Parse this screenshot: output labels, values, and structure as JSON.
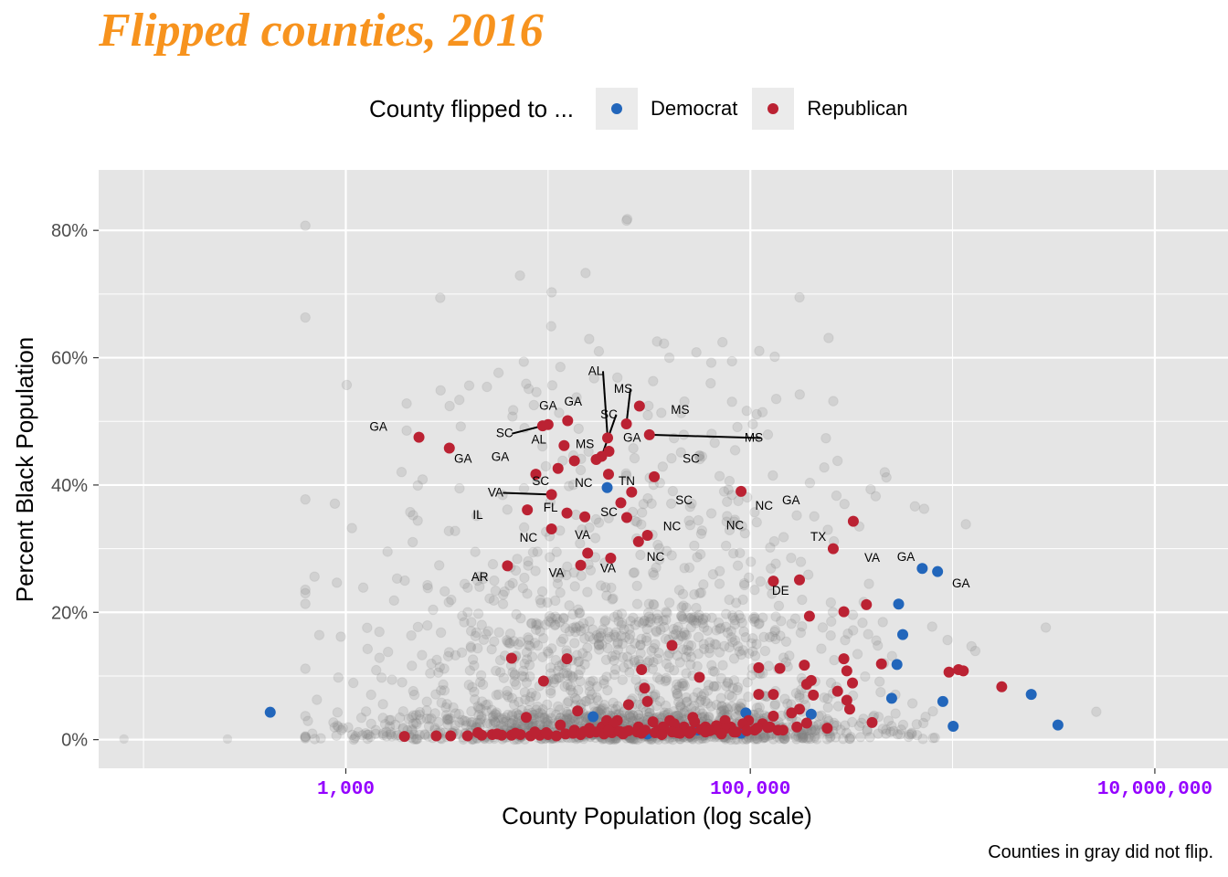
{
  "title": "Flipped counties, 2016",
  "caption": "Counties in gray did not flip.",
  "legend": {
    "title": "County flipped to ...",
    "items": [
      {
        "label": "Democrat",
        "color": "#2266bb"
      },
      {
        "label": "Republican",
        "color": "#bb2233"
      }
    ]
  },
  "colors": {
    "panel": "#e5e5e5",
    "grid": "#ffffff",
    "gray_points": "#808080",
    "title": "#f7931e",
    "x_ticks": "#9400ff"
  },
  "chart_data": {
    "type": "scatter",
    "title": "Flipped counties, 2016",
    "xlabel": "County Population (log scale)",
    "ylabel": "Percent Black Population",
    "x_scale": "log10",
    "xlim": [
      60,
      23000000
    ],
    "ylim": [
      -4.5,
      89.5
    ],
    "x_ticks": [
      1000,
      100000,
      10000000
    ],
    "x_tick_labels": [
      "1,000",
      "100,000",
      "10,000,000"
    ],
    "y_ticks": [
      0,
      20,
      40,
      60,
      80
    ],
    "y_tick_labels": [
      "0%",
      "20%",
      "40%",
      "60%",
      "80%"
    ],
    "grid": true,
    "series": [
      {
        "name": "Democrat",
        "color": "#2266bb",
        "points": [
          [
            423,
            4.3
          ],
          [
            19600,
            39.6
          ],
          [
            708000,
            26.9
          ],
          [
            843000,
            26.4
          ],
          [
            541000,
            21.3
          ],
          [
            567000,
            16.5
          ],
          [
            531000,
            11.8
          ],
          [
            500000,
            6.5
          ],
          [
            895000,
            6.0
          ],
          [
            1007000,
            2.1
          ],
          [
            2449000,
            7.1
          ],
          [
            3318000,
            2.3
          ],
          [
            95000,
            4.2
          ],
          [
            16700,
            3.6
          ],
          [
            43000,
            2.0
          ],
          [
            90000,
            1.0
          ],
          [
            200000,
            4.0
          ],
          [
            31000,
            0.9
          ],
          [
            55000,
            1.5
          ],
          [
            70000,
            1.8
          ]
        ]
      },
      {
        "name": "Republican",
        "color": "#bb2233",
        "points": [
          [
            2300,
            47.5
          ],
          [
            3250,
            45.8
          ],
          [
            9400,
            49.3
          ],
          [
            10000,
            49.5
          ],
          [
            12500,
            50.1
          ],
          [
            13500,
            43.8
          ],
          [
            12000,
            46.2
          ],
          [
            11200,
            42.6
          ],
          [
            19700,
            47.4
          ],
          [
            20000,
            45.3
          ],
          [
            18400,
            44.5
          ],
          [
            17300,
            44.0
          ],
          [
            24400,
            49.6
          ],
          [
            28300,
            52.4
          ],
          [
            31700,
            47.9
          ],
          [
            19900,
            41.7
          ],
          [
            8700,
            41.7
          ],
          [
            10400,
            38.5
          ],
          [
            33500,
            41.3
          ],
          [
            25900,
            38.9
          ],
          [
            22900,
            37.2
          ],
          [
            90000,
            39.0
          ],
          [
            7900,
            36.1
          ],
          [
            12400,
            35.6
          ],
          [
            15200,
            35.0
          ],
          [
            24500,
            34.9
          ],
          [
            31000,
            32.1
          ],
          [
            28000,
            31.1
          ],
          [
            10400,
            33.1
          ],
          [
            14500,
            27.4
          ],
          [
            20400,
            28.5
          ],
          [
            6300,
            27.3
          ],
          [
            15700,
            29.3
          ],
          [
            130000,
            24.9
          ],
          [
            175000,
            25.1
          ],
          [
            323000,
            34.3
          ],
          [
            257000,
            30.0
          ],
          [
            290000,
            20.1
          ],
          [
            196000,
            19.4
          ],
          [
            375000,
            21.2
          ],
          [
            12400,
            12.7
          ],
          [
            6600,
            12.8
          ],
          [
            9500,
            9.2
          ],
          [
            41000,
            14.8
          ],
          [
            29000,
            11.0
          ],
          [
            30000,
            8.1
          ],
          [
            56000,
            9.8
          ],
          [
            110000,
            11.3
          ],
          [
            140000,
            11.2
          ],
          [
            185000,
            11.7
          ],
          [
            200000,
            9.3
          ],
          [
            290000,
            12.7
          ],
          [
            300000,
            10.8
          ],
          [
            445000,
            11.9
          ],
          [
            960000,
            10.6
          ],
          [
            1070000,
            11.0
          ],
          [
            1130000,
            10.8
          ],
          [
            190000,
            8.7
          ],
          [
            130000,
            7.1
          ],
          [
            110000,
            7.1
          ],
          [
            205000,
            7.0
          ],
          [
            270000,
            7.6
          ],
          [
            300000,
            6.2
          ],
          [
            310000,
            4.8
          ],
          [
            320000,
            8.9
          ],
          [
            1750000,
            8.3
          ],
          [
            160000,
            4.2
          ],
          [
            175000,
            4.8
          ],
          [
            130000,
            3.7
          ],
          [
            190000,
            2.6
          ],
          [
            240000,
            1.8
          ],
          [
            170000,
            2.0
          ],
          [
            400000,
            2.7
          ],
          [
            14000,
            4.5
          ],
          [
            22000,
            3.0
          ],
          [
            25000,
            5.5
          ],
          [
            31000,
            6.0
          ],
          [
            40000,
            3.0
          ],
          [
            47000,
            2.0
          ],
          [
            52000,
            3.5
          ],
          [
            35000,
            1.5
          ],
          [
            60000,
            2.0
          ],
          [
            80000,
            2.0
          ],
          [
            75000,
            3.0
          ],
          [
            98000,
            3.0
          ],
          [
            115000,
            2.5
          ],
          [
            125000,
            2.0
          ],
          [
            7800,
            3.5
          ],
          [
            11500,
            2.3
          ],
          [
            13500,
            1.5
          ],
          [
            16000,
            1.8
          ],
          [
            18500,
            2.0
          ],
          [
            19500,
            3.0
          ],
          [
            21000,
            2.5
          ],
          [
            24000,
            1.2
          ],
          [
            28000,
            2.0
          ],
          [
            33000,
            2.8
          ],
          [
            37000,
            2.0
          ],
          [
            42000,
            2.5
          ],
          [
            45000,
            1.0
          ],
          [
            53000,
            2.8
          ],
          [
            58000,
            1.6
          ],
          [
            64000,
            1.5
          ],
          [
            68000,
            2.2
          ],
          [
            85000,
            1.2
          ],
          [
            92000,
            2.5
          ],
          [
            105000,
            1.5
          ],
          [
            145000,
            1.5
          ],
          [
            1950,
            0.5
          ],
          [
            2800,
            0.6
          ],
          [
            3300,
            0.6
          ],
          [
            4000,
            0.6
          ],
          [
            4700,
            0.7
          ],
          [
            5300,
            0.8
          ],
          [
            5900,
            0.7
          ],
          [
            6600,
            0.7
          ],
          [
            7300,
            0.8
          ],
          [
            8200,
            0.6
          ],
          [
            9100,
            0.7
          ],
          [
            10000,
            0.8
          ],
          [
            11000,
            0.6
          ],
          [
            12200,
            0.9
          ],
          [
            13300,
            1.0
          ],
          [
            14500,
            0.8
          ],
          [
            16100,
            1.1
          ],
          [
            17300,
            1.2
          ],
          [
            18900,
            0.9
          ],
          [
            20700,
            1.1
          ],
          [
            22600,
            1.3
          ],
          [
            25000,
            1.4
          ],
          [
            27600,
            1.2
          ],
          [
            30200,
            1.5
          ],
          [
            33800,
            1.1
          ],
          [
            37500,
            1.7
          ],
          [
            41100,
            1.2
          ],
          [
            46500,
            1.4
          ],
          [
            51000,
            1.3
          ],
          [
            57000,
            1.6
          ],
          [
            63000,
            1.4
          ],
          [
            69000,
            1.5
          ],
          [
            76000,
            1.8
          ],
          [
            83000,
            1.2
          ],
          [
            96000,
            1.4
          ],
          [
            108000,
            1.8
          ],
          [
            122000,
            1.9
          ],
          [
            137000,
            1.5
          ],
          [
            4500,
            1.1
          ],
          [
            5600,
            0.9
          ],
          [
            6900,
            1.0
          ],
          [
            8600,
            1.2
          ],
          [
            9800,
            1.1
          ],
          [
            15100,
            1.3
          ],
          [
            19900,
            1.5
          ],
          [
            23500,
            0.9
          ],
          [
            29000,
            1.0
          ],
          [
            36500,
            0.8
          ],
          [
            43600,
            1.1
          ],
          [
            50000,
            1.0
          ],
          [
            60000,
            1.2
          ],
          [
            72000,
            0.9
          ]
        ]
      }
    ],
    "state_labels": [
      {
        "text": "GA",
        "x": 1450,
        "y": 48.5
      },
      {
        "text": "GA",
        "x": 3800,
        "y": 43.5
      },
      {
        "text": "SC",
        "x": 6100,
        "y": 47.5
      },
      {
        "text": "GA",
        "x": 10000,
        "y": 51.8
      },
      {
        "text": "GA",
        "x": 13300,
        "y": 52.5
      },
      {
        "text": "AL",
        "x": 9000,
        "y": 46.5
      },
      {
        "text": "MS",
        "x": 15200,
        "y": 45.8
      },
      {
        "text": "GA",
        "x": 5800,
        "y": 43.8
      },
      {
        "text": "SC",
        "x": 9200,
        "y": 40.0
      },
      {
        "text": "NC",
        "x": 15000,
        "y": 39.7
      },
      {
        "text": "VA",
        "x": 5500,
        "y": 38.2
      },
      {
        "text": "AL",
        "x": 17200,
        "y": 57.3
      },
      {
        "text": "SC",
        "x": 20000,
        "y": 50.5
      },
      {
        "text": "MS",
        "x": 23500,
        "y": 54.5
      },
      {
        "text": "MS",
        "x": 45000,
        "y": 51.2
      },
      {
        "text": "GA",
        "x": 26000,
        "y": 46.8
      },
      {
        "text": "MS",
        "x": 104000,
        "y": 46.8
      },
      {
        "text": "TN",
        "x": 24500,
        "y": 40.0
      },
      {
        "text": "SC",
        "x": 51000,
        "y": 43.5
      },
      {
        "text": "SC",
        "x": 47000,
        "y": 37.0
      },
      {
        "text": "NC",
        "x": 117000,
        "y": 36.1
      },
      {
        "text": "GA",
        "x": 159000,
        "y": 37.0
      },
      {
        "text": "IL",
        "x": 4500,
        "y": 34.7
      },
      {
        "text": "FL",
        "x": 10300,
        "y": 35.8
      },
      {
        "text": "SC",
        "x": 20000,
        "y": 35.1
      },
      {
        "text": "NC",
        "x": 41000,
        "y": 32.9
      },
      {
        "text": "NC",
        "x": 84000,
        "y": 33.0
      },
      {
        "text": "TX",
        "x": 217000,
        "y": 31.2
      },
      {
        "text": "NC",
        "x": 8000,
        "y": 31.1
      },
      {
        "text": "VA",
        "x": 14800,
        "y": 31.5
      },
      {
        "text": "NC",
        "x": 34000,
        "y": 28.1
      },
      {
        "text": "VA",
        "x": 400000,
        "y": 27.9
      },
      {
        "text": "GA",
        "x": 588000,
        "y": 28.1
      },
      {
        "text": "VA",
        "x": 11000,
        "y": 25.6
      },
      {
        "text": "VA",
        "x": 19800,
        "y": 26.3
      },
      {
        "text": "AR",
        "x": 4600,
        "y": 24.9
      },
      {
        "text": "DE",
        "x": 141000,
        "y": 22.8
      },
      {
        "text": "GA",
        "x": 1100000,
        "y": 23.9
      }
    ]
  }
}
